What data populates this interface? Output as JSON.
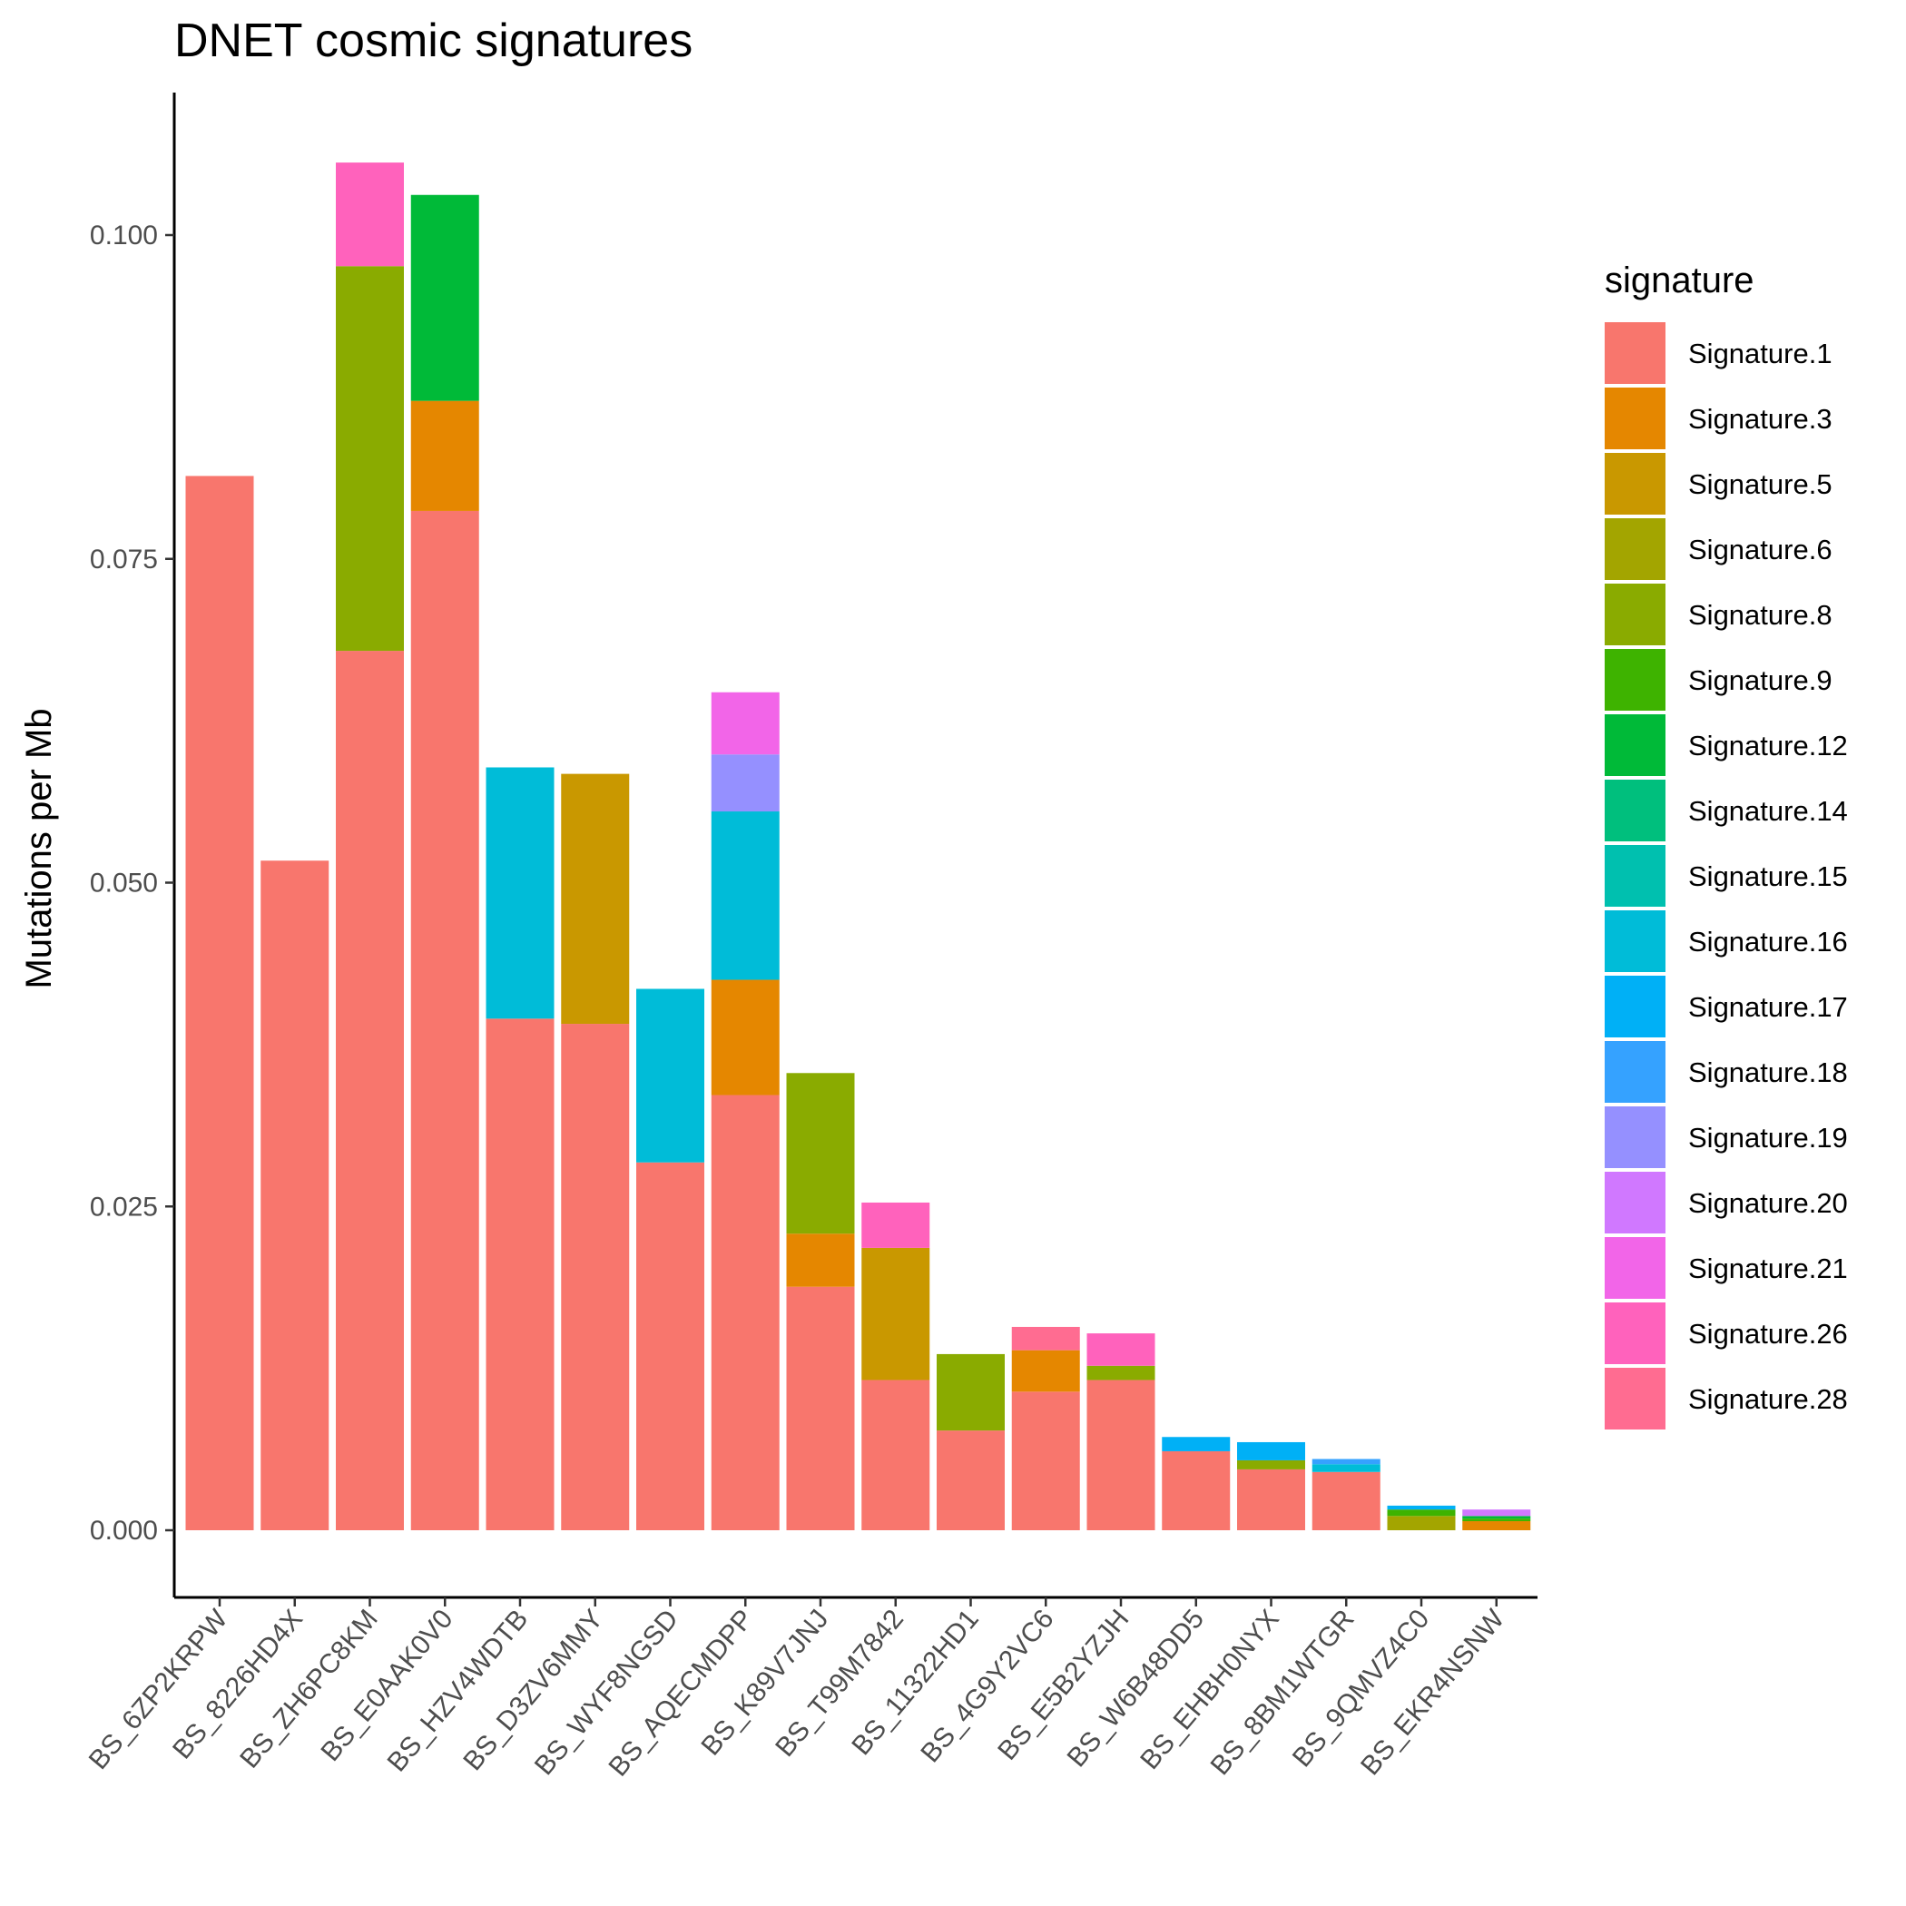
{
  "chart_data": {
    "type": "bar",
    "stacked": true,
    "title": "DNET cosmic signatures",
    "xlabel": "",
    "ylabel": "Mutations per Mb",
    "ylim": [
      -0.005,
      0.11
    ],
    "yticks": [
      "0.000",
      "0.025",
      "0.050",
      "0.075",
      "0.100"
    ],
    "ytick_values": [
      0,
      0.025,
      0.05,
      0.075,
      0.1
    ],
    "legend_title": "signature",
    "legend_position": "right",
    "grid": false,
    "categories": [
      "BS_6ZP2KRPW",
      "BS_8226HD4X",
      "BS_ZH6PC8KM",
      "BS_E0AAK0V0",
      "BS_HZV4WDTB",
      "BS_D3ZV6MMY",
      "BS_WYF8NGSD",
      "BS_AQECMDPP",
      "BS_K89V7JNJ",
      "BS_T99M7842",
      "BS_11322HD1",
      "BS_4G9Y2VC6",
      "BS_E5B2YZJH",
      "BS_W6B48DD5",
      "BS_EHBH0NYX",
      "BS_8BM1WTGR",
      "BS_9QMVZ4C0",
      "BS_EKR4NSNW"
    ],
    "series": [
      {
        "name": "Signature.1",
        "color": "#F8766D",
        "values": [
          0.0814,
          0.0517,
          0.0679,
          0.0787,
          0.0395,
          0.0391,
          0.0284,
          0.0336,
          0.0188,
          0.0116,
          0.0077,
          0.0107,
          0.0116,
          0.0061,
          0.0047,
          0.0045,
          0.0,
          0.0
        ]
      },
      {
        "name": "Signature.3",
        "color": "#E58700",
        "values": [
          0,
          0,
          0,
          0.0085,
          0,
          0,
          0,
          0.0089,
          0.0041,
          0,
          0,
          0.0032,
          0,
          0,
          0,
          0,
          0,
          0.0007
        ]
      },
      {
        "name": "Signature.5",
        "color": "#C99800",
        "values": [
          0,
          0,
          0,
          0,
          0,
          0.0193,
          0,
          0,
          0,
          0.0102,
          0,
          0,
          0,
          0,
          0,
          0,
          0,
          0
        ]
      },
      {
        "name": "Signature.6",
        "color": "#A3A500",
        "values": [
          0,
          0,
          0,
          0,
          0,
          0,
          0,
          0,
          0,
          0,
          0,
          0,
          0,
          0,
          0,
          0,
          0.0011,
          0
        ]
      },
      {
        "name": "Signature.8",
        "color": "#8AAB00",
        "values": [
          0,
          0,
          0.0297,
          0,
          0,
          0,
          0,
          0,
          0.0124,
          0,
          0.0059,
          0,
          0.0011,
          0,
          0.0007,
          0,
          0,
          0
        ]
      },
      {
        "name": "Signature.9",
        "color": "#3EB300",
        "values": [
          0,
          0,
          0,
          0,
          0,
          0,
          0,
          0,
          0,
          0,
          0,
          0,
          0,
          0,
          0,
          0,
          0.0005,
          0.0002
        ]
      },
      {
        "name": "Signature.12",
        "color": "#00BA38",
        "values": [
          0,
          0,
          0,
          0.0159,
          0,
          0,
          0,
          0,
          0,
          0,
          0,
          0,
          0,
          0,
          0,
          0,
          0,
          0.0002
        ]
      },
      {
        "name": "Signature.14",
        "color": "#00BF7D",
        "values": [
          0,
          0,
          0,
          0,
          0,
          0,
          0,
          0,
          0,
          0,
          0,
          0,
          0,
          0,
          0,
          0,
          0,
          0
        ]
      },
      {
        "name": "Signature.15",
        "color": "#00C0AF",
        "values": [
          0,
          0,
          0,
          0,
          0,
          0,
          0,
          0,
          0,
          0,
          0,
          0,
          0,
          0,
          0,
          0,
          0,
          0
        ]
      },
      {
        "name": "Signature.16",
        "color": "#00BCD8",
        "values": [
          0,
          0,
          0,
          0,
          0.0194,
          0,
          0.0134,
          0.013,
          0,
          0,
          0,
          0,
          0,
          0,
          0,
          0.0006,
          0,
          0
        ]
      },
      {
        "name": "Signature.17",
        "color": "#00B0F6",
        "values": [
          0,
          0,
          0,
          0,
          0,
          0,
          0,
          0,
          0,
          0,
          0,
          0,
          0,
          0.0011,
          0.0014,
          0,
          0.0003,
          0
        ]
      },
      {
        "name": "Signature.18",
        "color": "#35A2FF",
        "values": [
          0,
          0,
          0,
          0,
          0,
          0,
          0,
          0,
          0,
          0,
          0,
          0,
          0,
          0,
          0,
          0.0004,
          0,
          0
        ]
      },
      {
        "name": "Signature.19",
        "color": "#9590FF",
        "values": [
          0,
          0,
          0,
          0,
          0,
          0,
          0,
          0.0044,
          0,
          0,
          0,
          0,
          0,
          0,
          0,
          0,
          0,
          0
        ]
      },
      {
        "name": "Signature.20",
        "color": "#D078FF",
        "values": [
          0,
          0,
          0,
          0,
          0,
          0,
          0,
          0,
          0,
          0,
          0,
          0,
          0,
          0,
          0,
          0,
          0,
          0.0005
        ]
      },
      {
        "name": "Signature.21",
        "color": "#F265E8",
        "values": [
          0,
          0,
          0,
          0,
          0,
          0,
          0,
          0.0048,
          0,
          0,
          0,
          0,
          0,
          0,
          0,
          0,
          0,
          0
        ]
      },
      {
        "name": "Signature.26",
        "color": "#FF62BC",
        "values": [
          0,
          0,
          0.008,
          0,
          0,
          0,
          0,
          0,
          0,
          0.0035,
          0,
          0,
          0.0025,
          0,
          0,
          0,
          0,
          0
        ]
      },
      {
        "name": "Signature.28",
        "color": "#FF6C91",
        "values": [
          0,
          0,
          0,
          0,
          0,
          0,
          0,
          0,
          0,
          0,
          0,
          0.0018,
          0,
          0,
          0,
          0,
          0,
          0
        ]
      }
    ]
  }
}
